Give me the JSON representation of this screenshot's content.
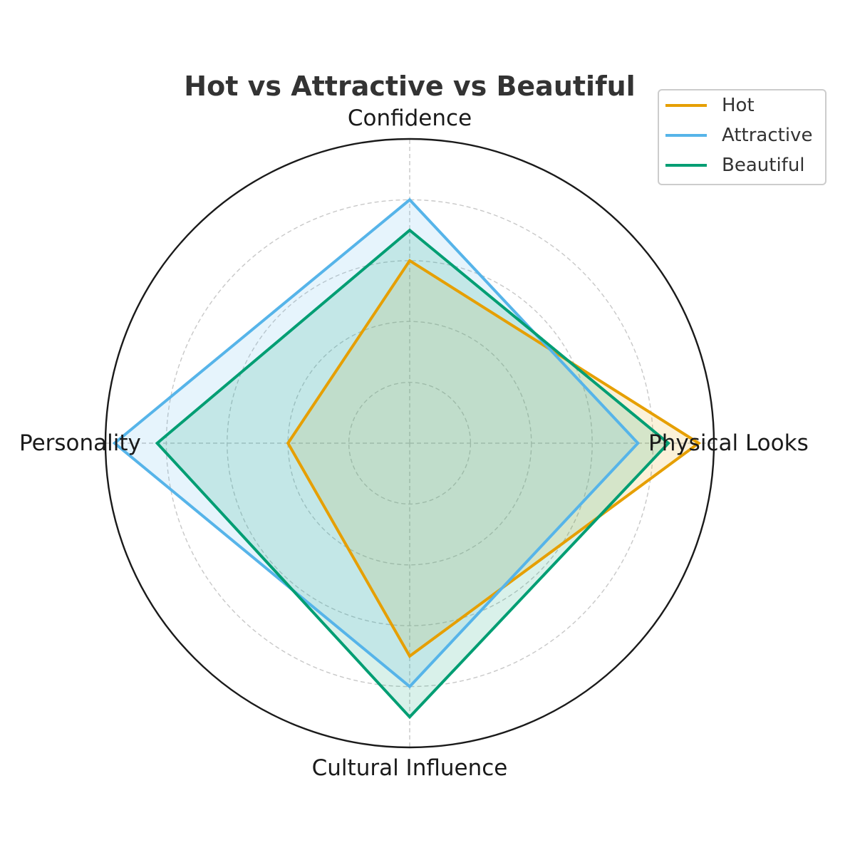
{
  "chart_data": {
    "type": "radar",
    "title": "Hot vs Attractive vs Beautiful",
    "axes": [
      "Physical Looks",
      "Confidence",
      "Personality",
      "Cultural Influence"
    ],
    "rmax": 10,
    "grid_levels": [
      2,
      4,
      6,
      8
    ],
    "grid": true,
    "legend_position": "top-right",
    "series": [
      {
        "name": "Hot",
        "color": "#E69F00",
        "fill_opacity": 0.15,
        "values": [
          9.5,
          6,
          4,
          7
        ]
      },
      {
        "name": "Attractive",
        "color": "#56B4E9",
        "fill_opacity": 0.15,
        "values": [
          7.5,
          8,
          9.7,
          8
        ]
      },
      {
        "name": "Beautiful",
        "color": "#009E73",
        "fill_opacity": 0.15,
        "values": [
          8.5,
          7,
          8.3,
          9
        ]
      }
    ]
  }
}
